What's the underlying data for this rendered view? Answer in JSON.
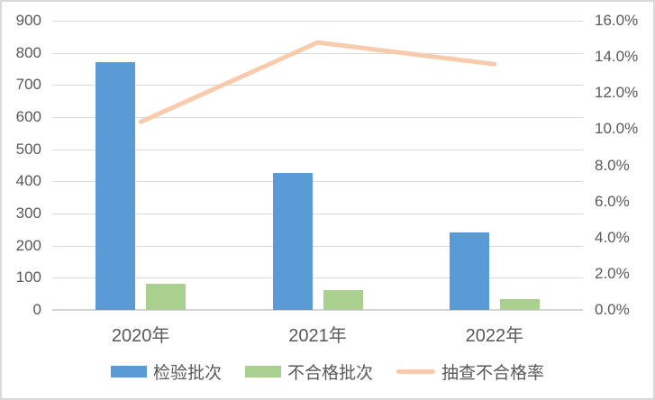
{
  "chart_data": {
    "type": "combo-bar-line",
    "title": "",
    "categories": [
      "2020年",
      "2021年",
      "2022年"
    ],
    "series": [
      {
        "id": "inspection-batches",
        "name": "检验批次",
        "type": "bar",
        "axis": "left",
        "color": "#5B9BD5",
        "values": [
          770,
          427,
          242
        ]
      },
      {
        "id": "failed-batches",
        "name": "不合格批次",
        "type": "bar",
        "axis": "left",
        "color": "#A9D08E",
        "values": [
          80,
          63,
          33
        ]
      },
      {
        "id": "sample-failure-rate",
        "name": "抽查不合格率",
        "type": "line",
        "axis": "right",
        "color": "#F8CBAD",
        "values": [
          10.4,
          14.8,
          13.6
        ],
        "unit": "%"
      }
    ],
    "left_axis": {
      "min": 0,
      "max": 900,
      "step": 100,
      "ticks": [
        "900",
        "800",
        "700",
        "600",
        "500",
        "400",
        "300",
        "200",
        "100",
        "0"
      ]
    },
    "right_axis": {
      "min": 0,
      "max": 16,
      "step": 2,
      "ticks": [
        "16.0%",
        "14.0%",
        "12.0%",
        "10.0%",
        "8.0%",
        "6.0%",
        "4.0%",
        "2.0%",
        "0.0%"
      ]
    },
    "grid": true,
    "legend_position": "bottom"
  },
  "style": {
    "bar_blue": "#5B9BD5",
    "bar_green": "#A9D08E",
    "line_peach": "#F8CBAD",
    "gridline_color": "#D9D9D9",
    "axis_text_color": "#595959",
    "frame_color": "#D9D9D9",
    "background": "#FFFFFF"
  }
}
